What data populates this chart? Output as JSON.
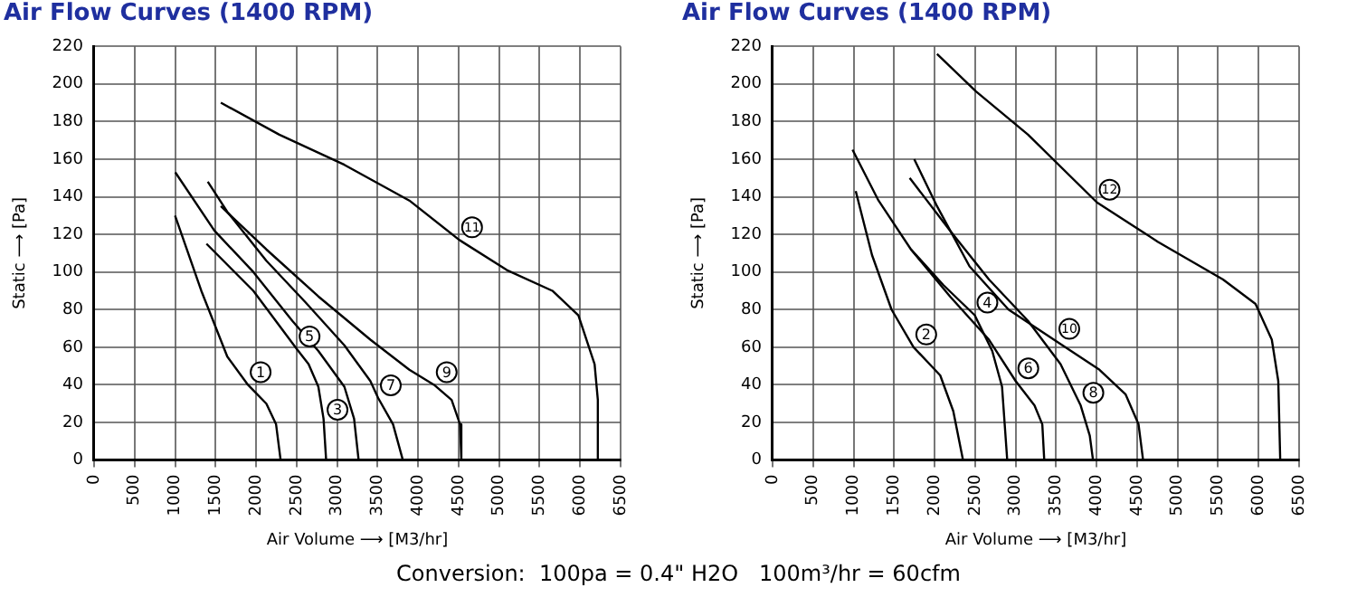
{
  "chart_data": [
    {
      "type": "line",
      "title": "Air Flow Curves (1400 RPM)",
      "xlabel": "Air Volume ⟶ [M3/hr]",
      "ylabel": "Static ⟶ [Pa]",
      "xlim": [
        0,
        6500
      ],
      "xticks": [
        0,
        500,
        1000,
        1500,
        2000,
        2500,
        3000,
        3500,
        4000,
        4500,
        5000,
        5500,
        6000,
        6500
      ],
      "ylim": [
        0,
        220
      ],
      "yticks": [
        0,
        20,
        40,
        60,
        80,
        100,
        120,
        140,
        160,
        180,
        200,
        220
      ],
      "grid": true,
      "series": [
        {
          "color": "#000000",
          "x": [
            1000,
            1324,
            1645,
            1900,
            2127,
            2247,
            2303
          ],
          "values": [
            130,
            90,
            55,
            40,
            30,
            19,
            0
          ]
        },
        {
          "color": "#000000",
          "x": [
            1388,
            1966,
            2504,
            2648,
            2769,
            2833,
            2865
          ],
          "values": [
            115,
            90,
            59,
            51,
            39,
            22,
            0
          ]
        },
        {
          "color": "#000000",
          "x": [
            1003,
            1485,
            1966,
            2448,
            2769,
            3090,
            3210,
            3266
          ],
          "values": [
            153,
            122,
            100,
            74,
            58,
            39,
            22,
            0
          ]
        },
        {
          "color": "#000000",
          "x": [
            1404,
            1645,
            2127,
            2608,
            3090,
            3411,
            3507,
            3691,
            3812
          ],
          "values": [
            148,
            132,
            106,
            84,
            61,
            42,
            33,
            19,
            0
          ]
        },
        {
          "color": "#000000",
          "x": [
            1565,
            2127,
            2769,
            3411,
            3892,
            4197,
            4414,
            4518,
            4534
          ],
          "values": [
            135,
            112,
            87,
            64,
            48,
            40,
            32,
            19,
            0
          ]
        },
        {
          "color": "#000000",
          "x": [
            1565,
            2287,
            3090,
            3892,
            4510,
            5096,
            5658,
            5979,
            6179,
            6219,
            6219
          ],
          "values": [
            190,
            173,
            157,
            138,
            117,
            101,
            90,
            77,
            51,
            32,
            0
          ]
        }
      ],
      "annotations": [
        {
          "text": "1",
          "x": 1900,
          "y": 40
        },
        {
          "text": "3",
          "x": 2849,
          "y": 20
        },
        {
          "text": "5",
          "x": 2504,
          "y": 59
        },
        {
          "text": "7",
          "x": 3507,
          "y": 33
        },
        {
          "text": "9",
          "x": 4197,
          "y": 40
        },
        {
          "text": "11",
          "x": 4510,
          "y": 117
        },
        "Conversion:  100pa = 0.4\" H2O   100m³/hr = 60cfm"
      ]
    },
    {
      "type": "line",
      "title": "Air Flow Curves (1400 RPM)",
      "xlabel": "Air Volume ⟶ [M3/hr]",
      "ylabel": "Static ⟶ [Pa]",
      "xlim": [
        0,
        6500
      ],
      "xticks": [
        0,
        500,
        1000,
        1500,
        2000,
        2500,
        3000,
        3500,
        4000,
        4500,
        5000,
        5500,
        6000,
        6500
      ],
      "ylim": [
        0,
        220
      ],
      "yticks": [
        0,
        20,
        40,
        60,
        80,
        100,
        120,
        140,
        160,
        180,
        200,
        220
      ],
      "grid": true,
      "series": [
        {
          "color": "#000000",
          "x": [
            1027,
            1228,
            1469,
            1741,
            2070,
            2231,
            2351
          ],
          "values": [
            143,
            109,
            80,
            60,
            45,
            26,
            0
          ]
        },
        {
          "color": "#000000",
          "x": [
            987,
            1308,
            1709,
            2110,
            2496,
            2712,
            2833,
            2897
          ],
          "values": [
            165,
            138,
            112,
            93,
            77,
            58,
            39,
            0
          ]
        },
        {
          "color": "#000000",
          "x": [
            1709,
            2191,
            2672,
            3001,
            3234,
            3330,
            3354
          ],
          "values": [
            112,
            87,
            64,
            42,
            29,
            19,
            0
          ]
        },
        {
          "color": "#000000",
          "x": [
            1693,
            2191,
            2672,
            3154,
            3555,
            3804,
            3916,
            3956
          ],
          "values": [
            150,
            122,
            96,
            74,
            51,
            29,
            13,
            0
          ]
        },
        {
          "color": "#000000",
          "x": [
            1749,
            2030,
            2432,
            2913,
            3507,
            4036,
            4357,
            4518,
            4574
          ],
          "values": [
            160,
            135,
            103,
            80,
            63,
            48,
            35,
            19,
            0
          ]
        },
        {
          "color": "#000000",
          "x": [
            2030,
            2512,
            3154,
            4004,
            4759,
            5561,
            5962,
            6163,
            6243,
            6267
          ],
          "values": [
            216,
            196,
            173,
            137,
            116,
            96,
            83,
            64,
            42,
            0
          ]
        }
      ],
      "annotations": [
        {
          "text": "2",
          "x": 1741,
          "y": 60
        },
        {
          "text": "4",
          "x": 2496,
          "y": 77
        },
        {
          "text": "6",
          "x": 3001,
          "y": 42
        },
        {
          "text": "8",
          "x": 3804,
          "y": 29
        },
        {
          "text": "10",
          "x": 3507,
          "y": 63
        },
        {
          "text": "12",
          "x": 4004,
          "y": 137
        }
      ]
    }
  ]
}
